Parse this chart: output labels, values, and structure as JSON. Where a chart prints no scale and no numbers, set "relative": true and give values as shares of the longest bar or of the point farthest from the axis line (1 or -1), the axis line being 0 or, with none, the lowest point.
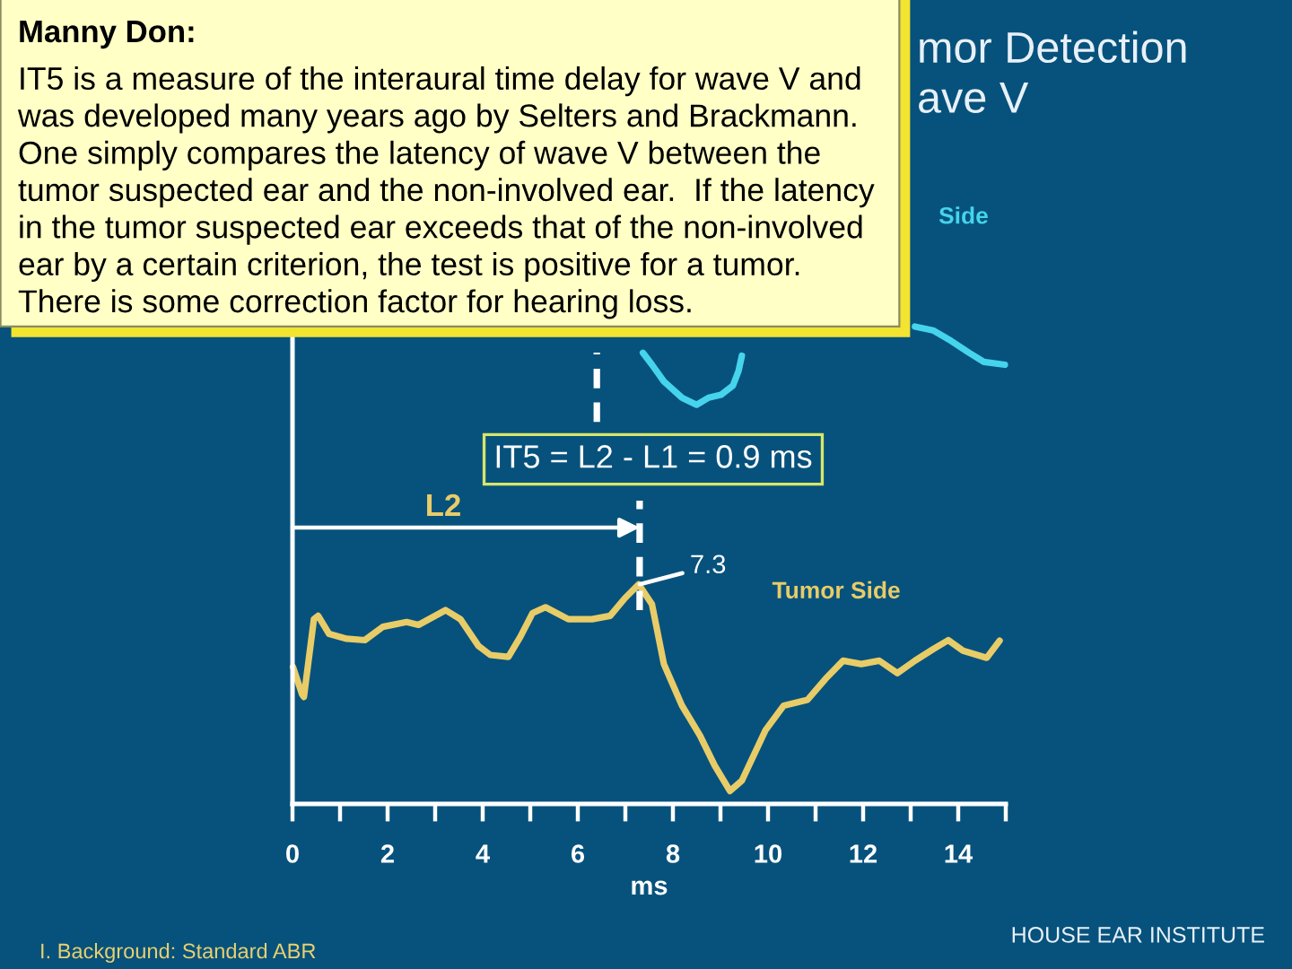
{
  "chart_data": {
    "type": "line",
    "title": "mor Detection\nave V",
    "xlabel": "ms",
    "relative": true,
    "grid": false,
    "legend": false,
    "xlim": [
      0,
      15
    ],
    "xticks": [
      0,
      {
        "value": 1,
        "label": null
      },
      2,
      {
        "value": 3,
        "label": null
      },
      4,
      {
        "value": 5,
        "label": null
      },
      6,
      {
        "value": 7,
        "label": null
      },
      8,
      {
        "value": 9,
        "label": null
      },
      10,
      {
        "value": 11,
        "label": null
      },
      12,
      {
        "value": 13,
        "label": null
      },
      14,
      {
        "value": 15,
        "label": null
      }
    ],
    "series": [
      {
        "name": "Side",
        "color": "#45d4ec",
        "x": [
          7.37,
          7.56,
          7.81,
          8.19,
          8.5,
          8.75,
          9.01,
          9.26,
          9.38,
          9.45,
          11.3,
          13.09,
          13.47,
          13.85,
          14.23,
          14.54,
          14.98
        ],
        "values": [
          0.945,
          0.92,
          0.885,
          0.851,
          0.836,
          0.851,
          0.857,
          0.876,
          0.907,
          0.939,
          null,
          1.0,
          0.992,
          0.97,
          0.945,
          0.926,
          0.92
        ]
      },
      {
        "name": "Tumor Side",
        "color": "#e8cc68",
        "x": [
          0.01,
          0.2,
          0.24,
          0.45,
          0.54,
          0.77,
          1.14,
          1.52,
          1.9,
          2.4,
          2.65,
          3.22,
          3.53,
          3.91,
          4.16,
          4.54,
          4.79,
          5.05,
          5.32,
          5.8,
          6.3,
          6.68,
          6.99,
          7.28,
          7.56,
          7.81,
          8.19,
          8.57,
          8.88,
          9.2,
          9.45,
          9.95,
          10.33,
          10.83,
          11.21,
          11.58,
          11.96,
          12.34,
          12.72,
          13.09,
          13.47,
          13.79,
          14.1,
          14.6,
          14.87
        ],
        "values": [
          0.287,
          0.23,
          0.224,
          0.387,
          0.394,
          0.356,
          0.346,
          0.343,
          0.371,
          0.381,
          0.375,
          0.406,
          0.387,
          0.331,
          0.312,
          0.308,
          0.35,
          0.4,
          0.412,
          0.387,
          0.387,
          0.394,
          0.431,
          0.46,
          0.418,
          0.293,
          0.206,
          0.143,
          0.08,
          0.027,
          0.049,
          0.155,
          0.206,
          0.218,
          0.262,
          0.3,
          0.293,
          0.3,
          0.274,
          0.3,
          0.324,
          0.343,
          0.321,
          0.306,
          0.342
        ]
      }
    ],
    "ref_lines": [
      {
        "axis": "x",
        "value": 6.4,
        "color": "#ffffff",
        "line_style": "dashed"
      },
      {
        "axis": "x",
        "value": 7.3,
        "color": "#ffffff",
        "line_style": "dashed"
      }
    ],
    "annotations": [
      "Manny Don:",
      "IT5 is a measure of the interaural time delay for wave V and\nwas developed many years ago by Selters and Brackmann.\nOne simply compares the latency of wave V between the\ntumor suspected ear and the non-involved ear.  If the latency\nin the tumor suspected ear exceeds that of the non-involved\near by a certain criterion, the test is positive for a tumor.\nThere is some correction factor for hearing loss.",
      "IT5 = L2 - L1 = 0.9 ms",
      "L2",
      {
        "text": "7.3",
        "x": 7.3,
        "y": 0.46
      },
      "I. Background: Standard ABR",
      "HOUSE EAR INSTITUTE"
    ]
  }
}
